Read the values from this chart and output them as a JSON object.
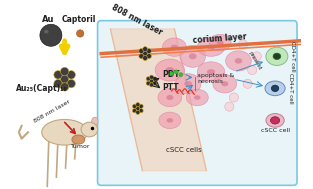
{
  "bg_color": "#f5f5f5",
  "title": "",
  "labels": {
    "au": "Au",
    "captoril": "Captoril",
    "formula": "Au₂₅(Capt)₁₈",
    "laser_left": "808 nm laser",
    "laser_top": "808 nm laser",
    "corium": "corium layer",
    "pdt": "PDT",
    "ptt": "PTT",
    "apoptosis": "apoptosis &",
    "necrosis": "necrosis",
    "cscc_cells": "cSCC cells",
    "cscc_cell": "cSCC cell",
    "tumor": "Tumor",
    "cd4_t1": "CD4+T cell",
    "cd4_t2": "CD4+T cell"
  },
  "colors": {
    "outer_box_fill": "#e8f4f8",
    "outer_box_stroke": "#7bc8e2",
    "beam_fill": "#f5c5a0",
    "beam_stroke": "#e8a070",
    "laser_line_color": "#e05010",
    "corium_line": "#e07040",
    "cell_pink": "#f0a0b0",
    "cell_light_pink": "#f8d0d8",
    "nanoparticle_dark": "#303030",
    "nanoparticle_gold": "#c8a020",
    "arrow_yellow": "#f0d000",
    "arrow_blue": "#4090c0",
    "text_dark": "#202020",
    "text_blue": "#2060a0",
    "green_glow": "#60c060",
    "red_heat": "#e03020",
    "pdt_green": "#30c030",
    "cd4_green_fill": "#b8e8b0",
    "cd4_blue_fill": "#b0c8e8",
    "cd4_pink_fill": "#e8b0c0",
    "nucleus_dark": "#205020",
    "nucleus_blue": "#204060"
  }
}
